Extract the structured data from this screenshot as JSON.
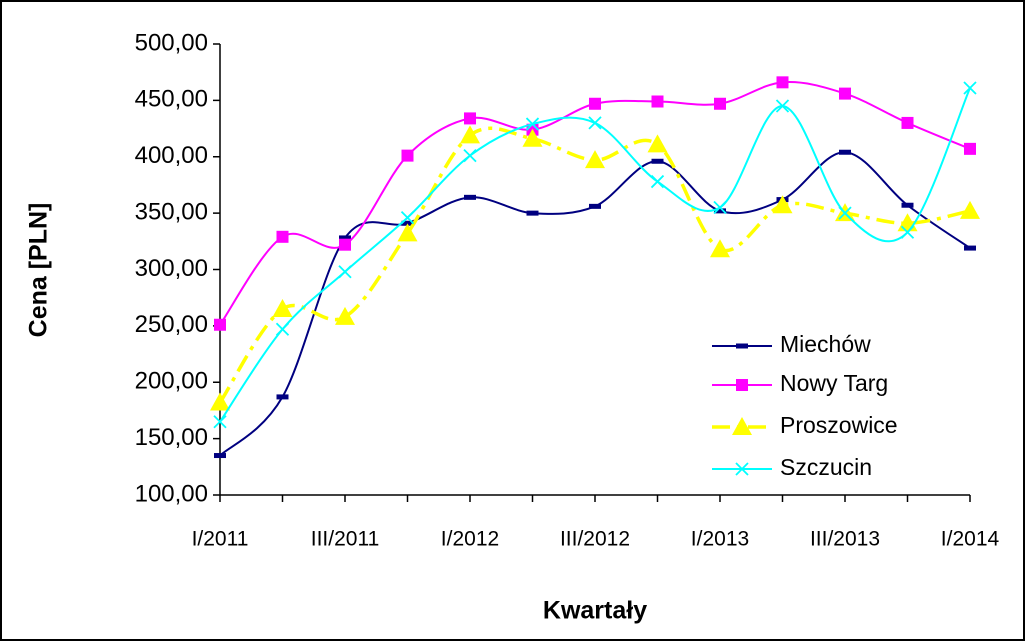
{
  "chart_data": {
    "type": "line",
    "x_label": "Kwartały",
    "y_label": "Cena [PLN]",
    "categories": [
      "I/2011",
      null,
      "III/2011",
      null,
      "I/2012",
      null,
      "III/2012",
      null,
      "I/2013",
      null,
      "III/2013",
      null,
      "I/2014"
    ],
    "series": [
      {
        "name": "Miechów",
        "color": "#000080",
        "marker": "dash",
        "dash": "solid",
        "values": [
          135,
          187,
          328,
          341,
          364,
          350,
          356,
          396,
          352,
          362,
          404,
          357,
          319
        ]
      },
      {
        "name": "Nowy Targ",
        "color": "#ff00ff",
        "marker": "square",
        "dash": "solid",
        "values": [
          251,
          329,
          322,
          401,
          434,
          424,
          447,
          449,
          447,
          466,
          456,
          430,
          407
        ]
      },
      {
        "name": "Proszowice",
        "color": "#ffff00",
        "marker": "triangle",
        "dash": "dashdot",
        "values": [
          182,
          265,
          258,
          332,
          419,
          416,
          397,
          411,
          318,
          357,
          350,
          341,
          352
        ]
      },
      {
        "name": "Szczucin",
        "color": "#00ffff",
        "marker": "x",
        "dash": "solid",
        "values": [
          165,
          247,
          298,
          346,
          401,
          429,
          430,
          378,
          355,
          445,
          350,
          333,
          461
        ]
      }
    ],
    "ylim": [
      100,
      500
    ],
    "yticks": [
      {
        "value": 100,
        "label": "100,00"
      },
      {
        "value": 150,
        "label": "150,00"
      },
      {
        "value": 200,
        "label": "200,00"
      },
      {
        "value": 250,
        "label": "250,00"
      },
      {
        "value": 300,
        "label": "300,00"
      },
      {
        "value": 350,
        "label": "350,00"
      },
      {
        "value": 400,
        "label": "400,00"
      },
      {
        "value": 450,
        "label": "450,00"
      },
      {
        "value": 500,
        "label": "500,00"
      }
    ],
    "smooth": true,
    "legend": "lower-right"
  }
}
